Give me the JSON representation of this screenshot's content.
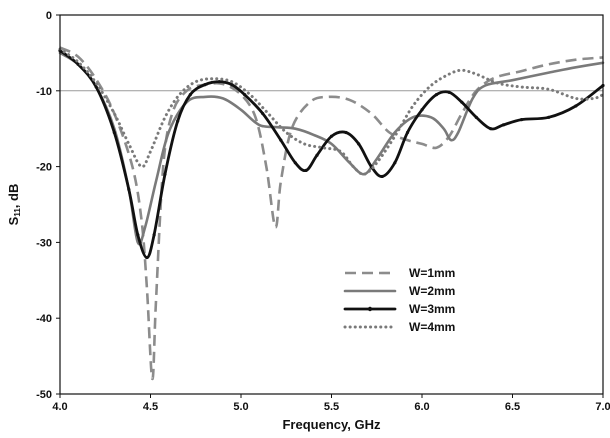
{
  "chart_data": {
    "type": "line",
    "xlabel": "Frequency, GHz",
    "ylabel_main": "S",
    "ylabel_sub": "11",
    "ylabel_tail": ", dB",
    "xlim": [
      4.0,
      7.0
    ],
    "ylim": [
      -50,
      0
    ],
    "x_ticks": [
      "4.0",
      "4.5",
      "5.0",
      "5.5",
      "6.0",
      "6.5",
      "7.0"
    ],
    "y_ticks": [
      "0",
      "-10",
      "-20",
      "-30",
      "-40",
      "-50"
    ],
    "reference_line_y": -10,
    "grid": false,
    "legend_position": "lower-right",
    "series": [
      {
        "name": "W=1mm",
        "style": "dashed",
        "color": "#8c8c8c",
        "points": [
          [
            4.0,
            -4.3
          ],
          [
            4.1,
            -5.5
          ],
          [
            4.2,
            -8.5
          ],
          [
            4.3,
            -13
          ],
          [
            4.4,
            -20
          ],
          [
            4.45,
            -27
          ],
          [
            4.48,
            -36
          ],
          [
            4.51,
            -48
          ],
          [
            4.53,
            -38
          ],
          [
            4.57,
            -20
          ],
          [
            4.62,
            -13
          ],
          [
            4.7,
            -10
          ],
          [
            4.8,
            -9.2
          ],
          [
            4.9,
            -9.1
          ],
          [
            5.0,
            -10.5
          ],
          [
            5.08,
            -13.5
          ],
          [
            5.14,
            -20
          ],
          [
            5.19,
            -28
          ],
          [
            5.22,
            -22
          ],
          [
            5.28,
            -15
          ],
          [
            5.38,
            -11.5
          ],
          [
            5.48,
            -10.8
          ],
          [
            5.6,
            -11.2
          ],
          [
            5.72,
            -13
          ],
          [
            5.82,
            -15.5
          ],
          [
            5.92,
            -16.5
          ],
          [
            6.0,
            -17
          ],
          [
            6.08,
            -17.5
          ],
          [
            6.15,
            -16
          ],
          [
            6.22,
            -13
          ],
          [
            6.3,
            -10
          ],
          [
            6.4,
            -8.3
          ],
          [
            6.55,
            -7.4
          ],
          [
            6.7,
            -6.5
          ],
          [
            6.85,
            -5.9
          ],
          [
            7.0,
            -5.6
          ]
        ]
      },
      {
        "name": "W=2mm",
        "style": "solid",
        "color": "#7a7a7a",
        "points": [
          [
            4.0,
            -5.0
          ],
          [
            4.1,
            -6.5
          ],
          [
            4.2,
            -9.5
          ],
          [
            4.3,
            -15
          ],
          [
            4.38,
            -23
          ],
          [
            4.43,
            -30
          ],
          [
            4.47,
            -28
          ],
          [
            4.53,
            -22
          ],
          [
            4.6,
            -15.5
          ],
          [
            4.7,
            -11.5
          ],
          [
            4.8,
            -10.8
          ],
          [
            4.9,
            -11
          ],
          [
            5.0,
            -12.5
          ],
          [
            5.1,
            -14.5
          ],
          [
            5.2,
            -14.8
          ],
          [
            5.3,
            -15
          ],
          [
            5.4,
            -15.8
          ],
          [
            5.5,
            -17
          ],
          [
            5.6,
            -19.5
          ],
          [
            5.68,
            -21
          ],
          [
            5.75,
            -19
          ],
          [
            5.85,
            -15.5
          ],
          [
            5.95,
            -13.5
          ],
          [
            6.05,
            -13.5
          ],
          [
            6.12,
            -15
          ],
          [
            6.16,
            -16.5
          ],
          [
            6.2,
            -15.5
          ],
          [
            6.28,
            -11
          ],
          [
            6.35,
            -9.3
          ],
          [
            6.5,
            -8.6
          ],
          [
            6.7,
            -7.6
          ],
          [
            6.85,
            -6.9
          ],
          [
            7.0,
            -6.3
          ]
        ]
      },
      {
        "name": "W=3mm",
        "style": "solid-marker",
        "color": "#111111",
        "points": [
          [
            4.0,
            -4.7
          ],
          [
            4.1,
            -6.5
          ],
          [
            4.2,
            -9.5
          ],
          [
            4.3,
            -15.5
          ],
          [
            4.38,
            -23
          ],
          [
            4.43,
            -29
          ],
          [
            4.48,
            -32
          ],
          [
            4.52,
            -29
          ],
          [
            4.58,
            -21
          ],
          [
            4.65,
            -14
          ],
          [
            4.72,
            -10.5
          ],
          [
            4.8,
            -9.2
          ],
          [
            4.88,
            -8.8
          ],
          [
            4.95,
            -9.2
          ],
          [
            5.02,
            -10.5
          ],
          [
            5.12,
            -13
          ],
          [
            5.22,
            -16.5
          ],
          [
            5.3,
            -19.5
          ],
          [
            5.36,
            -20.5
          ],
          [
            5.42,
            -18.5
          ],
          [
            5.5,
            -16
          ],
          [
            5.58,
            -15.5
          ],
          [
            5.65,
            -17
          ],
          [
            5.72,
            -20
          ],
          [
            5.78,
            -21.3
          ],
          [
            5.85,
            -19.5
          ],
          [
            5.92,
            -15.5
          ],
          [
            6.0,
            -12.5
          ],
          [
            6.08,
            -10.5
          ],
          [
            6.15,
            -10.2
          ],
          [
            6.22,
            -11.5
          ],
          [
            6.3,
            -13.5
          ],
          [
            6.38,
            -15
          ],
          [
            6.45,
            -14.5
          ],
          [
            6.55,
            -13.8
          ],
          [
            6.7,
            -13.5
          ],
          [
            6.85,
            -12
          ],
          [
            7.0,
            -9.3
          ]
        ]
      },
      {
        "name": "W=4mm",
        "style": "dotted",
        "color": "#7a7a7a",
        "points": [
          [
            4.0,
            -4.5
          ],
          [
            4.1,
            -6.2
          ],
          [
            4.2,
            -9
          ],
          [
            4.3,
            -13
          ],
          [
            4.38,
            -17
          ],
          [
            4.45,
            -20
          ],
          [
            4.5,
            -18
          ],
          [
            4.58,
            -13.5
          ],
          [
            4.66,
            -10.5
          ],
          [
            4.75,
            -8.8
          ],
          [
            4.85,
            -8.4
          ],
          [
            4.95,
            -8.8
          ],
          [
            5.05,
            -10.5
          ],
          [
            5.15,
            -13
          ],
          [
            5.25,
            -15.5
          ],
          [
            5.35,
            -17
          ],
          [
            5.45,
            -17.5
          ],
          [
            5.55,
            -18
          ],
          [
            5.62,
            -20
          ],
          [
            5.68,
            -21
          ],
          [
            5.75,
            -19.5
          ],
          [
            5.85,
            -16
          ],
          [
            5.95,
            -12
          ],
          [
            6.05,
            -9.3
          ],
          [
            6.15,
            -7.8
          ],
          [
            6.22,
            -7.3
          ],
          [
            6.3,
            -7.8
          ],
          [
            6.42,
            -9
          ],
          [
            6.55,
            -9.5
          ],
          [
            6.7,
            -9.8
          ],
          [
            6.85,
            -11
          ],
          [
            6.95,
            -11
          ],
          [
            7.0,
            -10.5
          ]
        ]
      }
    ]
  }
}
